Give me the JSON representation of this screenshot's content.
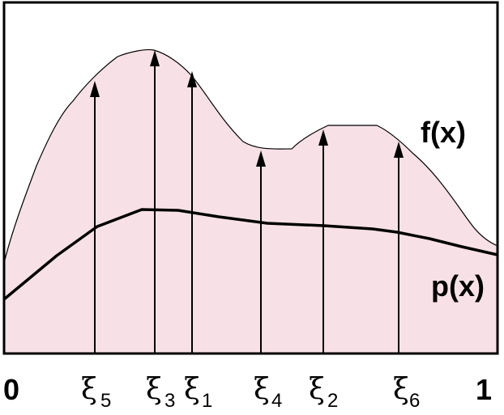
{
  "labels": {
    "f": "f(x)",
    "p": "p(x)",
    "x_min": "0",
    "x_max": "1"
  },
  "samples": [
    {
      "symbol": "ξ",
      "index": "5"
    },
    {
      "symbol": "ξ",
      "index": "3"
    },
    {
      "symbol": "ξ",
      "index": "1"
    },
    {
      "symbol": "ξ",
      "index": "4"
    },
    {
      "symbol": "ξ",
      "index": "2"
    },
    {
      "symbol": "ξ",
      "index": "6"
    }
  ]
}
